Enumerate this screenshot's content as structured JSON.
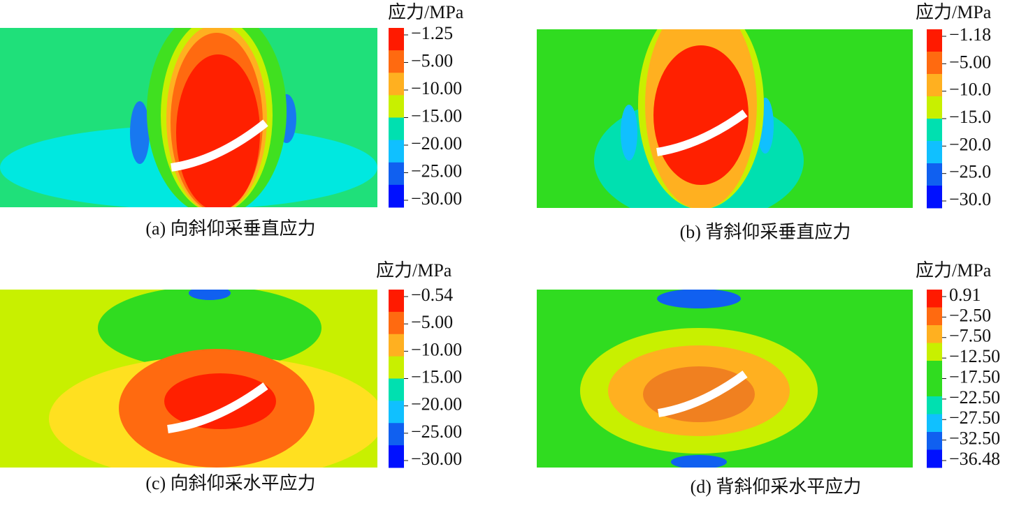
{
  "panels": [
    {
      "caption": "(a) 向斜仰采垂直应力",
      "unit": "应力/MPa",
      "legend_labels": [
        "−1.25",
        "−5.00",
        "−10.00",
        "−15.00",
        "−20.00",
        "−25.00",
        "−30.00"
      ]
    },
    {
      "caption": "(b) 背斜仰采垂直应力",
      "unit": "应力/MPa",
      "legend_labels": [
        "−1.18",
        "−5.00",
        "−10.0",
        "−15.0",
        "−20.0",
        "−25.0",
        "−30.0"
      ]
    },
    {
      "caption": "(c) 向斜仰采水平应力",
      "unit": "应力/MPa",
      "legend_labels": [
        "−0.54",
        "−5.00",
        "−10.00",
        "−15.00",
        "−20.00",
        "−25.00",
        "−30.00"
      ]
    },
    {
      "caption": "(d) 背斜仰采水平应力",
      "unit": "应力/MPa",
      "legend_labels": [
        "0.91",
        "−2.50",
        "−7.50",
        "−12.50",
        "−17.50",
        "−22.50",
        "−27.50",
        "−32.50",
        "−36.48"
      ]
    }
  ]
}
